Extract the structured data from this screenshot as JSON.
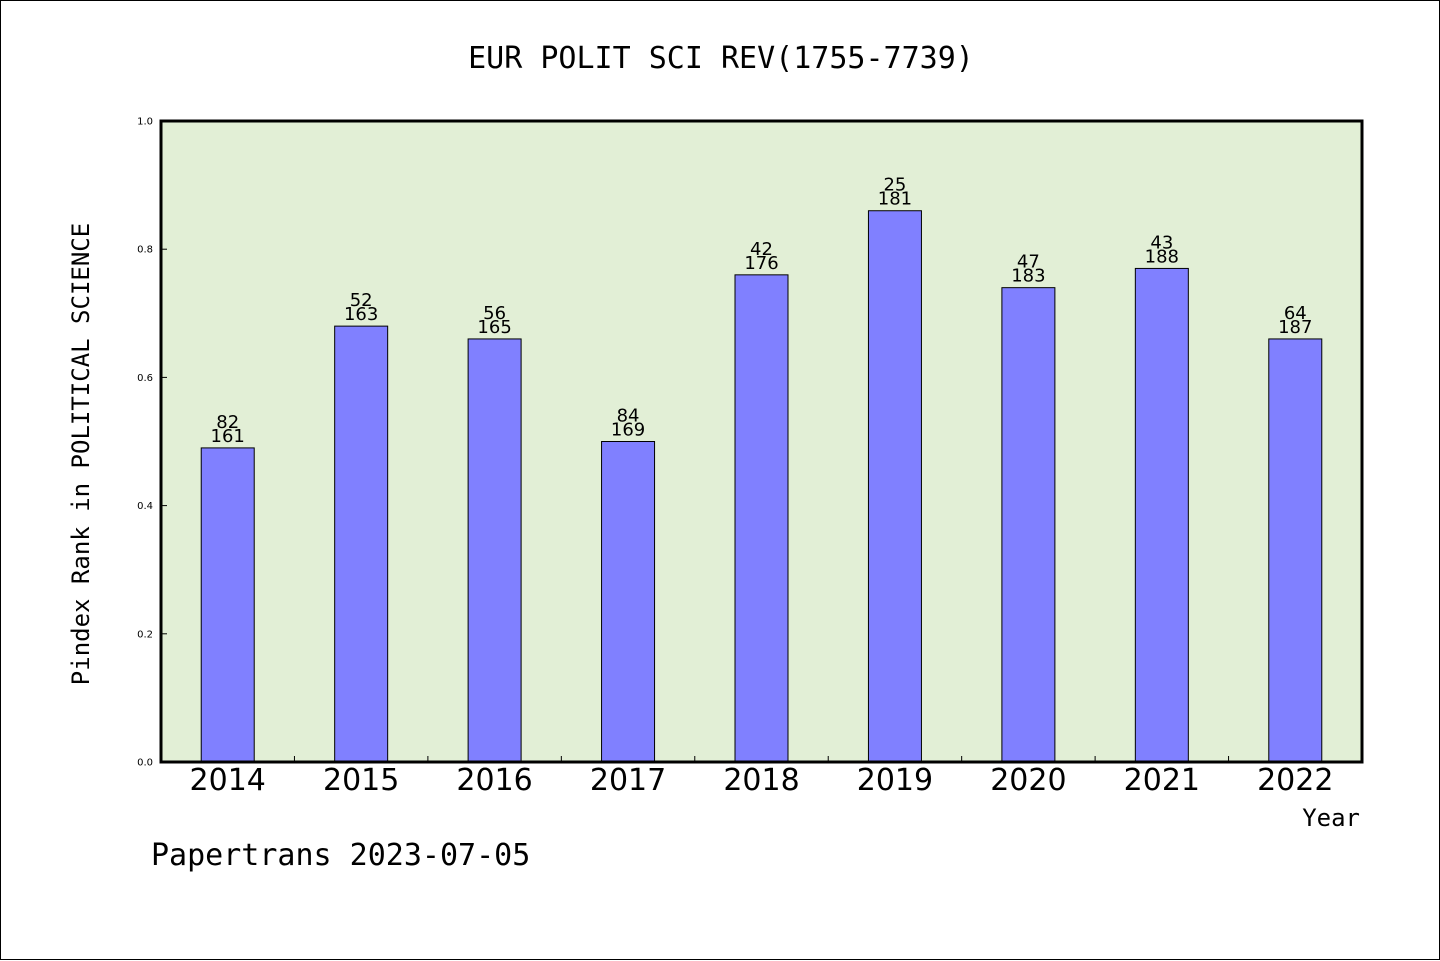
{
  "chart_data": {
    "type": "bar",
    "title": "EUR POLIT SCI REV(1755-7739)",
    "xlabel": "Year",
    "ylabel": "Pindex Rank in POLITICAL SCIENCE",
    "footer": "Papertrans 2023-07-05",
    "ylim": [
      0,
      1.0
    ],
    "yticks": [
      "0.0",
      "0.2",
      "0.4",
      "0.6",
      "0.8",
      "1.0"
    ],
    "ytick_values": [
      0,
      0.2,
      0.4,
      0.6,
      0.8,
      1.0
    ],
    "categories": [
      "2014",
      "2015",
      "2016",
      "2017",
      "2018",
      "2019",
      "2020",
      "2021",
      "2022"
    ],
    "values": [
      0.49,
      0.68,
      0.66,
      0.5,
      0.76,
      0.86,
      0.74,
      0.77,
      0.66
    ],
    "rank": [
      "82",
      "52",
      "56",
      "84",
      "42",
      "25",
      "47",
      "43",
      "64"
    ],
    "total": [
      "161",
      "163",
      "165",
      "169",
      "176",
      "181",
      "183",
      "188",
      "187"
    ],
    "grid": false,
    "colors": {
      "plot_background": "#e2efd6",
      "bar_fill": "#8080ff",
      "bar_stroke": "#000000",
      "axis": "#000000"
    }
  }
}
